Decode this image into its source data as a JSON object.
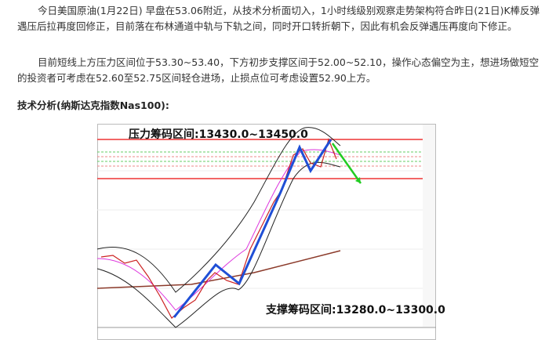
{
  "paragraphs": [
    "今日美国原油(1月22日) 早盘在53.06附近，从技术分析面切入，1小时线级别观察走势架构符合昨日(21日)K棒反弹遇压后拉再度回修正，目前落在布林通道中轨与下轨之间，同时开口转折朝下，因此有机会反弹遇压再度向下修正。",
    "目前短线上方压力区间位于53.30~53.40，下方初步支撑区间于52.00~52.10，操作心态偏空为主，想进场做短空的投资者可考虑在52.60至52.75区间轻仓进场，止损点位可考虑设置52.90上方。"
  ],
  "heading": "技术分析(纳斯达克指数Nas100):",
  "chart_image": {
    "resistance_label": "压力筹码区间:13430.0~13450.0",
    "support_label": "支撑筹码区间:13280.0~13300.0"
  }
}
